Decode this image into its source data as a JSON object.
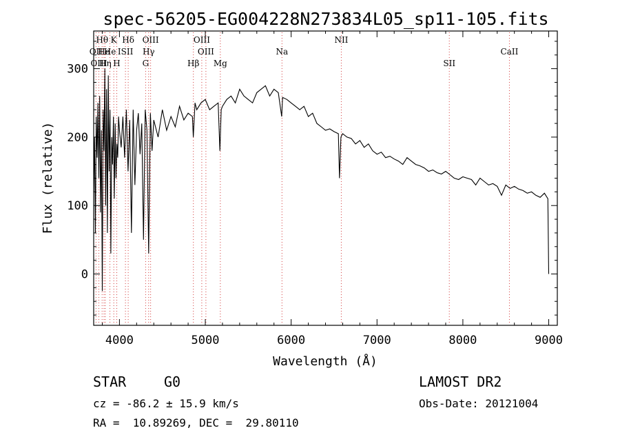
{
  "chart_data": {
    "type": "line",
    "title": "spec-56205-EG004228N273834L05_sp11-105.fits",
    "xlabel": "Wavelength (Å)",
    "ylabel": "Flux (relative)",
    "xlim": [
      3700,
      9100
    ],
    "ylim": [
      -75,
      355
    ],
    "xticks": [
      4000,
      5000,
      6000,
      7000,
      8000,
      9000
    ],
    "yticks": [
      0,
      100,
      200,
      300
    ],
    "grid": false,
    "series": [
      {
        "x": [
          3700,
          3710,
          3720,
          3730,
          3740,
          3750,
          3760,
          3770,
          3780,
          3790,
          3800,
          3810,
          3820,
          3830,
          3840,
          3850,
          3860,
          3870,
          3880,
          3890,
          3900,
          3910,
          3920,
          3930,
          3940,
          3950,
          3960,
          3970,
          3980,
          3990,
          4000,
          4020,
          4040,
          4060,
          4080,
          4100,
          4120,
          4140,
          4160,
          4180,
          4200,
          4220,
          4240,
          4260,
          4280,
          4300,
          4320,
          4340,
          4360,
          4380,
          4400,
          4450,
          4500,
          4550,
          4600,
          4650,
          4700,
          4750,
          4800,
          4850,
          4860,
          4880,
          4900,
          4950,
          5000,
          5050,
          5100,
          5150,
          5170,
          5185,
          5200,
          5250,
          5300,
          5350,
          5400,
          5450,
          5500,
          5550,
          5600,
          5650,
          5700,
          5750,
          5800,
          5850,
          5890,
          5900,
          5950,
          6000,
          6050,
          6100,
          6150,
          6200,
          6250,
          6300,
          6350,
          6400,
          6450,
          6500,
          6550,
          6563,
          6580,
          6600,
          6650,
          6700,
          6750,
          6800,
          6850,
          6900,
          6950,
          7000,
          7050,
          7100,
          7150,
          7200,
          7250,
          7300,
          7350,
          7400,
          7450,
          7500,
          7550,
          7600,
          7650,
          7700,
          7750,
          7800,
          7850,
          7900,
          7950,
          8000,
          8050,
          8100,
          8150,
          8200,
          8250,
          8300,
          8350,
          8400,
          8450,
          8500,
          8550,
          8600,
          8650,
          8700,
          8750,
          8800,
          8850,
          8900,
          8950,
          8990,
          9000
        ],
        "y": [
          120,
          200,
          60,
          230,
          170,
          250,
          140,
          260,
          90,
          210,
          -25,
          240,
          180,
          300,
          100,
          270,
          60,
          290,
          150,
          240,
          30,
          200,
          160,
          230,
          110,
          220,
          140,
          190,
          170,
          230,
          210,
          185,
          230,
          170,
          240,
          150,
          225,
          60,
          240,
          130,
          210,
          235,
          175,
          220,
          50,
          240,
          210,
          30,
          235,
          180,
          225,
          200,
          240,
          210,
          230,
          215,
          245,
          225,
          235,
          230,
          200,
          250,
          240,
          250,
          255,
          240,
          245,
          250,
          180,
          240,
          245,
          255,
          260,
          250,
          270,
          260,
          255,
          250,
          265,
          270,
          275,
          260,
          270,
          265,
          230,
          258,
          255,
          250,
          245,
          240,
          245,
          230,
          235,
          220,
          215,
          210,
          212,
          208,
          205,
          140,
          200,
          205,
          200,
          198,
          190,
          195,
          185,
          190,
          180,
          175,
          178,
          170,
          172,
          168,
          165,
          160,
          170,
          165,
          160,
          158,
          155,
          150,
          152,
          148,
          146,
          150,
          145,
          140,
          138,
          142,
          140,
          138,
          130,
          140,
          135,
          130,
          132,
          128,
          115,
          130,
          125,
          128,
          124,
          122,
          118,
          120,
          115,
          112,
          118,
          110,
          0
        ]
      }
    ],
    "spectral_lines": [
      {
        "label": "Hθ",
        "x": 3798,
        "row": 1
      },
      {
        "label": "K",
        "x": 3934,
        "row": 1
      },
      {
        "label": "Hδ",
        "x": 4102,
        "row": 1
      },
      {
        "label": "OIII",
        "x": 4363,
        "row": 1
      },
      {
        "label": "OIII",
        "x": 4959,
        "row": 1
      },
      {
        "label": "NII",
        "x": 6584,
        "row": 1
      },
      {
        "label": "OII",
        "x": 3727,
        "row": 2
      },
      {
        "label": "He",
        "x": 3820,
        "row": 2
      },
      {
        "label": "He",
        "x": 3889,
        "row": 2
      },
      {
        "label": "ISII",
        "x": 4070,
        "row": 2
      },
      {
        "label": "Hγ",
        "x": 4340,
        "row": 2
      },
      {
        "label": "OIII",
        "x": 5007,
        "row": 2
      },
      {
        "label": "Na",
        "x": 5893,
        "row": 2
      },
      {
        "label": "CaII",
        "x": 8542,
        "row": 2
      },
      {
        "label": "OIII",
        "x": 3760,
        "row": 3
      },
      {
        "label": "Hη",
        "x": 3835,
        "row": 3
      },
      {
        "label": "H",
        "x": 3969,
        "row": 3
      },
      {
        "label": "G",
        "x": 4305,
        "row": 3
      },
      {
        "label": "Hβ",
        "x": 4861,
        "row": 3
      },
      {
        "label": "Mg",
        "x": 5175,
        "row": 3
      },
      {
        "label": "SII",
        "x": 7842,
        "row": 3
      }
    ],
    "line_color": "#000000",
    "marker_color": "#d43a3a"
  },
  "info": {
    "class_label": "STAR",
    "subclass": "G0",
    "survey": "LAMOST DR2",
    "cz": "cz = -86.2 ± 15.9 km/s",
    "obs_date": "Obs-Date: 20121004",
    "radec": "RA =  10.89269, DEC =  29.80110"
  }
}
